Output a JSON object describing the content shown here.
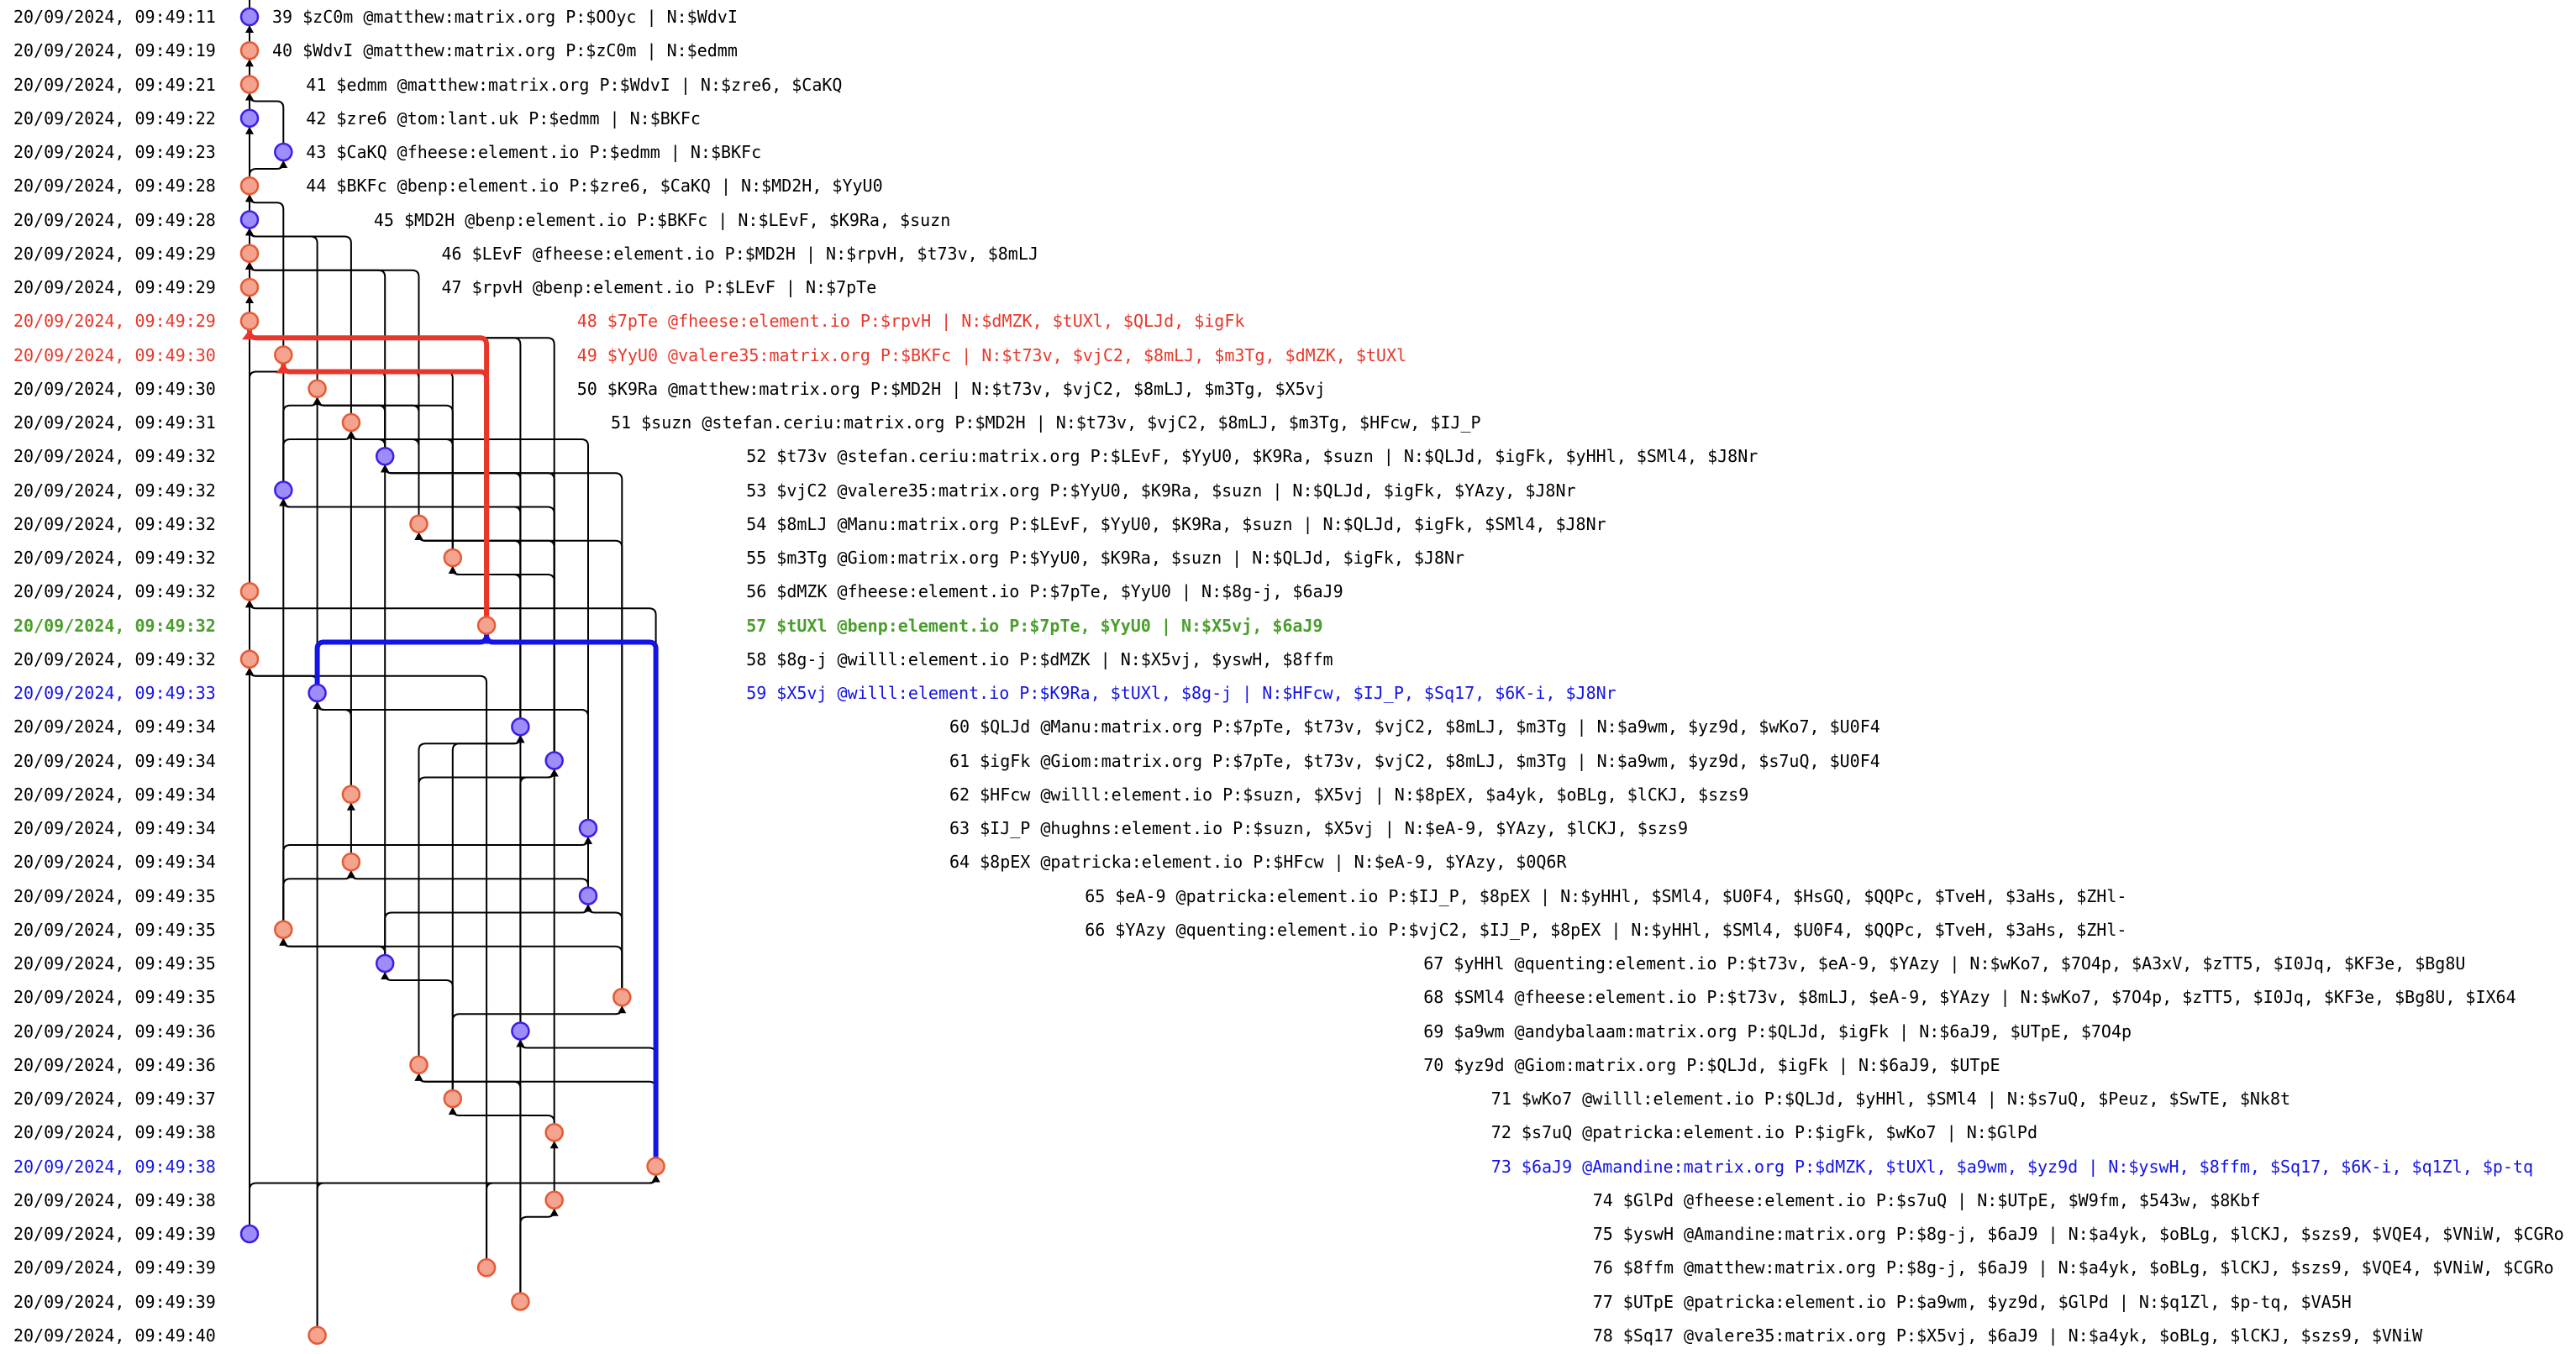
{
  "colors": {
    "red": "#e8372a",
    "green": "#4a9e2c",
    "blue": "#1414e6",
    "node_purple_fill": "#9d8cfb",
    "node_purple_stroke": "#3b1fe6",
    "node_salmon_fill": "#f4a48e",
    "node_salmon_stroke": "#e65a35"
  },
  "events": [
    {
      "date": "20/09/2024, 09:49:11",
      "text": "39 $zC0m @matthew:matrix.org P:$OOyc | N:$WdvI",
      "node": "purple",
      "style": "normal"
    },
    {
      "date": "20/09/2024, 09:49:19",
      "text": "40 $WdvI @matthew:matrix.org P:$zC0m | N:$edmm",
      "node": "salmon",
      "style": "normal"
    },
    {
      "date": "20/09/2024, 09:49:21",
      "text": "41 $edmm @matthew:matrix.org P:$WdvI | N:$zre6, $CaKQ",
      "node": "salmon",
      "style": "normal"
    },
    {
      "date": "20/09/2024, 09:49:22",
      "text": "42 $zre6 @tom:lant.uk P:$edmm | N:$BKFc",
      "node": "purple",
      "style": "normal"
    },
    {
      "date": "20/09/2024, 09:49:23",
      "text": "43 $CaKQ @fheese:element.io P:$edmm | N:$BKFc",
      "node": "purple",
      "style": "normal"
    },
    {
      "date": "20/09/2024, 09:49:28",
      "text": "44 $BKFc @benp:element.io P:$zre6, $CaKQ | N:$MD2H, $YyU0",
      "node": "salmon",
      "style": "normal"
    },
    {
      "date": "20/09/2024, 09:49:28",
      "text": "45 $MD2H @benp:element.io P:$BKFc | N:$LEvF, $K9Ra, $suzn",
      "node": "purple",
      "style": "normal"
    },
    {
      "date": "20/09/2024, 09:49:29",
      "text": "46 $LEvF @fheese:element.io P:$MD2H | N:$rpvH, $t73v, $8mLJ",
      "node": "salmon",
      "style": "normal"
    },
    {
      "date": "20/09/2024, 09:49:29",
      "text": "47 $rpvH @benp:element.io P:$LEvF | N:$7pTe",
      "node": "salmon",
      "style": "normal"
    },
    {
      "date": "20/09/2024, 09:49:29",
      "text": "48 $7pTe @fheese:element.io P:$rpvH | N:$dMZK, $tUXl, $QLJd, $igFk",
      "node": "salmon",
      "style": "red"
    },
    {
      "date": "20/09/2024, 09:49:30",
      "text": "49 $YyU0 @valere35:matrix.org P:$BKFc | N:$t73v, $vjC2, $8mLJ, $m3Tg, $dMZK, $tUXl",
      "node": "salmon",
      "style": "red"
    },
    {
      "date": "20/09/2024, 09:49:30",
      "text": "50 $K9Ra @matthew:matrix.org P:$MD2H | N:$t73v, $vjC2, $8mLJ, $m3Tg, $X5vj",
      "node": "salmon",
      "style": "normal"
    },
    {
      "date": "20/09/2024, 09:49:31",
      "text": "51 $suzn @stefan.ceriu:matrix.org P:$MD2H | N:$t73v, $vjC2, $8mLJ, $m3Tg, $HFcw, $IJ_P",
      "node": "salmon",
      "style": "normal"
    },
    {
      "date": "20/09/2024, 09:49:32",
      "text": "52 $t73v @stefan.ceriu:matrix.org P:$LEvF, $YyU0, $K9Ra, $suzn | N:$QLJd, $igFk, $yHHl, $SMl4, $J8Nr",
      "node": "purple",
      "style": "normal"
    },
    {
      "date": "20/09/2024, 09:49:32",
      "text": "53 $vjC2 @valere35:matrix.org P:$YyU0, $K9Ra, $suzn | N:$QLJd, $igFk, $YAzy, $J8Nr",
      "node": "purple",
      "style": "normal"
    },
    {
      "date": "20/09/2024, 09:49:32",
      "text": "54 $8mLJ @Manu:matrix.org P:$LEvF, $YyU0, $K9Ra, $suzn | N:$QLJd, $igFk, $SMl4, $J8Nr",
      "node": "salmon",
      "style": "normal"
    },
    {
      "date": "20/09/2024, 09:49:32",
      "text": "55 $m3Tg @Giom:matrix.org P:$YyU0, $K9Ra, $suzn | N:$QLJd, $igFk, $J8Nr",
      "node": "salmon",
      "style": "normal"
    },
    {
      "date": "20/09/2024, 09:49:32",
      "text": "56 $dMZK @fheese:element.io P:$7pTe, $YyU0 | N:$8g-j, $6aJ9",
      "node": "salmon",
      "style": "normal"
    },
    {
      "date": "20/09/2024, 09:49:32",
      "text": "57 $tUXl @benp:element.io P:$7pTe, $YyU0 | N:$X5vj, $6aJ9",
      "node": "salmon",
      "style": "green"
    },
    {
      "date": "20/09/2024, 09:49:32",
      "text": "58 $8g-j @willl:element.io P:$dMZK | N:$X5vj, $yswH, $8ffm",
      "node": "salmon",
      "style": "normal"
    },
    {
      "date": "20/09/2024, 09:49:33",
      "text": "59 $X5vj @willl:element.io P:$K9Ra, $tUXl, $8g-j | N:$HFcw, $IJ_P, $Sq17, $6K-i, $J8Nr",
      "node": "purple",
      "style": "blue"
    },
    {
      "date": "20/09/2024, 09:49:34",
      "text": "60 $QLJd @Manu:matrix.org P:$7pTe, $t73v, $vjC2, $8mLJ, $m3Tg | N:$a9wm, $yz9d, $wKo7, $U0F4",
      "node": "purple",
      "style": "normal"
    },
    {
      "date": "20/09/2024, 09:49:34",
      "text": "61 $igFk @Giom:matrix.org P:$7pTe, $t73v, $vjC2, $8mLJ, $m3Tg | N:$a9wm, $yz9d, $s7uQ, $U0F4",
      "node": "purple",
      "style": "normal"
    },
    {
      "date": "20/09/2024, 09:49:34",
      "text": "62 $HFcw @willl:element.io P:$suzn, $X5vj | N:$8pEX, $a4yk, $oBLg, $lCKJ, $szs9",
      "node": "salmon",
      "style": "normal"
    },
    {
      "date": "20/09/2024, 09:49:34",
      "text": "63 $IJ_P @hughns:element.io P:$suzn, $X5vj | N:$eA-9, $YAzy, $lCKJ, $szs9",
      "node": "purple",
      "style": "normal"
    },
    {
      "date": "20/09/2024, 09:49:34",
      "text": "64 $8pEX @patricka:element.io P:$HFcw | N:$eA-9, $YAzy, $0Q6R",
      "node": "salmon",
      "style": "normal"
    },
    {
      "date": "20/09/2024, 09:49:35",
      "text": "65 $eA-9 @patricka:element.io P:$IJ_P, $8pEX | N:$yHHl, $SMl4, $U0F4, $HsGQ, $QQPc, $TveH, $3aHs, $ZHl-",
      "node": "purple",
      "style": "normal"
    },
    {
      "date": "20/09/2024, 09:49:35",
      "text": "66 $YAzy @quenting:element.io P:$vjC2, $IJ_P, $8pEX | N:$yHHl, $SMl4, $U0F4, $QQPc, $TveH, $3aHs, $ZHl-",
      "node": "salmon",
      "style": "normal"
    },
    {
      "date": "20/09/2024, 09:49:35",
      "text": "67 $yHHl @quenting:element.io P:$t73v, $eA-9, $YAzy | N:$wKo7, $7O4p, $A3xV, $zTT5, $I0Jq, $KF3e, $Bg8U",
      "node": "purple",
      "style": "normal"
    },
    {
      "date": "20/09/2024, 09:49:35",
      "text": "68 $SMl4 @fheese:element.io P:$t73v, $8mLJ, $eA-9, $YAzy | N:$wKo7, $7O4p, $zTT5, $I0Jq, $KF3e, $Bg8U, $IX64",
      "node": "salmon",
      "style": "normal"
    },
    {
      "date": "20/09/2024, 09:49:36",
      "text": "69 $a9wm @andybalaam:matrix.org P:$QLJd, $igFk | N:$6aJ9, $UTpE, $7O4p",
      "node": "purple",
      "style": "normal"
    },
    {
      "date": "20/09/2024, 09:49:36",
      "text": "70 $yz9d @Giom:matrix.org P:$QLJd, $igFk | N:$6aJ9, $UTpE",
      "node": "salmon",
      "style": "normal"
    },
    {
      "date": "20/09/2024, 09:49:37",
      "text": "71 $wKo7 @willl:element.io P:$QLJd, $yHHl, $SMl4 | N:$s7uQ, $Peuz, $SwTE, $Nk8t",
      "node": "salmon",
      "style": "normal"
    },
    {
      "date": "20/09/2024, 09:49:38",
      "text": "72 $s7uQ @patricka:element.io P:$igFk, $wKo7 | N:$GlPd",
      "node": "salmon",
      "style": "normal"
    },
    {
      "date": "20/09/2024, 09:49:38",
      "text": "73 $6aJ9 @Amandine:matrix.org P:$dMZK, $tUXl, $a9wm, $yz9d | N:$yswH, $8ffm, $Sq17, $6K-i, $q1Zl, $p-tq",
      "node": "salmon",
      "style": "blue"
    },
    {
      "date": "20/09/2024, 09:49:38",
      "text": "74 $GlPd @fheese:element.io P:$s7uQ | N:$UTpE, $W9fm, $543w, $8Kbf",
      "node": "salmon",
      "style": "normal"
    },
    {
      "date": "20/09/2024, 09:49:39",
      "text": "75 $yswH @Amandine:matrix.org P:$8g-j, $6aJ9 | N:$a4yk, $oBLg, $lCKJ, $szs9, $VQE4, $VNiW, $CGRo",
      "node": "purple",
      "style": "normal"
    },
    {
      "date": "20/09/2024, 09:49:39",
      "text": "76 $8ffm @matthew:matrix.org P:$8g-j, $6aJ9 | N:$a4yk, $oBLg, $lCKJ, $szs9, $VQE4, $VNiW, $CGRo",
      "node": "salmon",
      "style": "normal"
    },
    {
      "date": "20/09/2024, 09:49:39",
      "text": "77 $UTpE @patricka:element.io P:$a9wm, $yz9d, $GlPd | N:$q1Zl, $p-tq, $VA5H",
      "node": "salmon",
      "style": "normal"
    },
    {
      "date": "20/09/2024, 09:49:40",
      "text": "78 $Sq17 @valere35:matrix.org P:$X5vj, $6aJ9 | N:$a4yk, $oBLg, $lCKJ, $szs9, $VNiW",
      "node": "salmon",
      "style": "normal"
    }
  ]
}
